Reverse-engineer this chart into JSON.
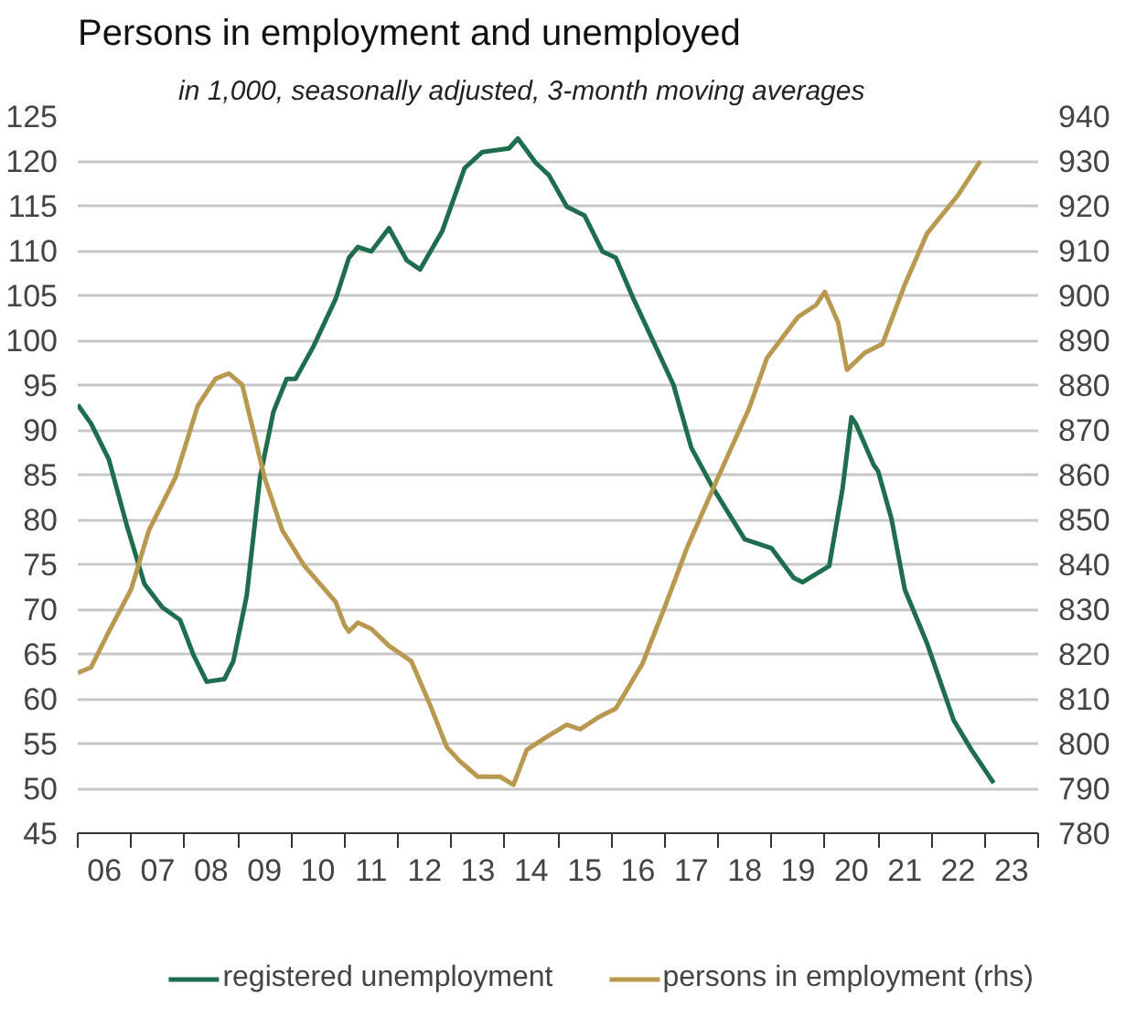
{
  "chart_data": {
    "type": "line",
    "title": "Persons in employment and unemployed",
    "subtitle": "in 1,000, seasonally adjusted, 3-month moving averages",
    "xlim": [
      "2006-01",
      "2024-01"
    ],
    "xticks": [
      {
        "value": "2006-01",
        "label": null
      },
      {
        "value": "2007-01",
        "label": null
      },
      {
        "value": "2008-01",
        "label": null
      },
      {
        "value": "2009-01",
        "label": null
      },
      {
        "value": "2010-01",
        "label": null
      },
      {
        "value": "2011-01",
        "label": null
      },
      {
        "value": "2012-01",
        "label": null
      },
      {
        "value": "2013-01",
        "label": null
      },
      {
        "value": "2014-01",
        "label": null
      },
      {
        "value": "2015-01",
        "label": null
      },
      {
        "value": "2016-01",
        "label": null
      },
      {
        "value": "2017-01",
        "label": null
      },
      {
        "value": "2018-01",
        "label": null
      },
      {
        "value": "2019-01",
        "label": null
      },
      {
        "value": "2020-01",
        "label": null
      },
      {
        "value": "2021-01",
        "label": null
      },
      {
        "value": "2022-01",
        "label": null
      },
      {
        "value": "2023-01",
        "label": null
      },
      {
        "value": "2024-01",
        "label": null
      },
      {
        "value": "2006-07",
        "label": "06"
      },
      {
        "value": "2007-07",
        "label": "07"
      },
      {
        "value": "2008-07",
        "label": "08"
      },
      {
        "value": "2009-07",
        "label": "09"
      },
      {
        "value": "2010-07",
        "label": "10"
      },
      {
        "value": "2011-07",
        "label": "11"
      },
      {
        "value": "2012-07",
        "label": "12"
      },
      {
        "value": "2013-07",
        "label": "13"
      },
      {
        "value": "2014-07",
        "label": "14"
      },
      {
        "value": "2015-07",
        "label": "15"
      },
      {
        "value": "2016-07",
        "label": "16"
      },
      {
        "value": "2017-07",
        "label": "17"
      },
      {
        "value": "2018-07",
        "label": "18"
      },
      {
        "value": "2019-07",
        "label": "19"
      },
      {
        "value": "2020-07",
        "label": "20"
      },
      {
        "value": "2021-07",
        "label": "21"
      },
      {
        "value": "2022-07",
        "label": "22"
      },
      {
        "value": "2023-07",
        "label": "23"
      }
    ],
    "ylim": [
      45,
      125
    ],
    "yticks": [
      45,
      50,
      55,
      60,
      65,
      70,
      75,
      80,
      85,
      90,
      95,
      100,
      105,
      110,
      115,
      120,
      125
    ],
    "y2lim": [
      780,
      940
    ],
    "y2ticks": [
      780,
      790,
      800,
      810,
      820,
      830,
      840,
      850,
      860,
      870,
      880,
      890,
      900,
      910,
      920,
      930,
      940
    ],
    "grid": "y",
    "legend": "bottom",
    "series": [
      {
        "name": "registered unemployment",
        "color": "#1e6e4e",
        "x": [
          "2006-01",
          "2006-04",
          "2006-08",
          "2006-12",
          "2007-04",
          "2007-08",
          "2007-12",
          "2008-03",
          "2008-06",
          "2008-10",
          "2008-12",
          "2009-03",
          "2009-06",
          "2009-09",
          "2009-12",
          "2010-02",
          "2010-06",
          "2010-11",
          "2011-02",
          "2011-04",
          "2011-07",
          "2011-11",
          "2012-03",
          "2012-06",
          "2012-11",
          "2013-04",
          "2013-08",
          "2014-02",
          "2014-04",
          "2014-08",
          "2014-11",
          "2015-03",
          "2015-07",
          "2015-11",
          "2016-02",
          "2016-06",
          "2017-03",
          "2017-07",
          "2017-12",
          "2018-07",
          "2019-01",
          "2019-06",
          "2019-08",
          "2020-02",
          "2020-05",
          "2020-07",
          "2020-08",
          "2020-12",
          "2021-01",
          "2021-04",
          "2021-07",
          "2021-12",
          "2022-06",
          "2022-10",
          "2023-03"
        ],
        "values": [
          92.8,
          90.7,
          86.7,
          79.4,
          72.8,
          70.2,
          68.8,
          64.9,
          61.9,
          62.2,
          64.2,
          71.5,
          84.7,
          92.0,
          95.7,
          95.7,
          99.3,
          104.6,
          109.2,
          110.4,
          109.9,
          112.5,
          108.9,
          107.9,
          112.2,
          119.2,
          121.0,
          121.4,
          122.5,
          119.8,
          118.4,
          114.9,
          113.9,
          109.9,
          109.2,
          104.6,
          95.0,
          88.0,
          83.4,
          77.8,
          76.8,
          73.5,
          73.0,
          74.8,
          83.4,
          91.4,
          90.7,
          86.1,
          85.4,
          80.1,
          72.2,
          66.2,
          57.6,
          54.3,
          50.6
        ]
      },
      {
        "name": "persons in employment (rhs)",
        "color": "#b8994f",
        "axis": "y2",
        "x": [
          "2006-01",
          "2006-04",
          "2006-08",
          "2007-01",
          "2007-05",
          "2007-11",
          "2008-04",
          "2008-08",
          "2008-11",
          "2009-02",
          "2009-07",
          "2009-11",
          "2010-04",
          "2010-11",
          "2011-01",
          "2011-02",
          "2011-04",
          "2011-07",
          "2011-11",
          "2012-04",
          "2012-08",
          "2012-12",
          "2013-03",
          "2013-07",
          "2013-12",
          "2014-03",
          "2014-06",
          "2014-10",
          "2015-03",
          "2015-06",
          "2015-10",
          "2016-02",
          "2016-08",
          "2017-01",
          "2017-06",
          "2018-01",
          "2018-08",
          "2018-12",
          "2019-07",
          "2019-11",
          "2020-01",
          "2020-04",
          "2020-06",
          "2020-10",
          "2021-02",
          "2021-07",
          "2021-12",
          "2022-07",
          "2022-12"
        ],
        "values": [
          815.8,
          817,
          825,
          834.4,
          847.6,
          859.4,
          875.4,
          881.4,
          882.6,
          880,
          859.4,
          847.6,
          839.6,
          831.6,
          826.4,
          825,
          827,
          825.6,
          821.8,
          818.4,
          809.2,
          799.2,
          796,
          792.6,
          792.6,
          790.8,
          798.6,
          801.2,
          804.2,
          803.2,
          805.8,
          807.8,
          817.8,
          830.4,
          843.6,
          859.4,
          874.8,
          886,
          895.2,
          897.8,
          900.8,
          894,
          883.4,
          887.2,
          889.2,
          902.4,
          913.8,
          922.4,
          930
        ]
      }
    ]
  }
}
